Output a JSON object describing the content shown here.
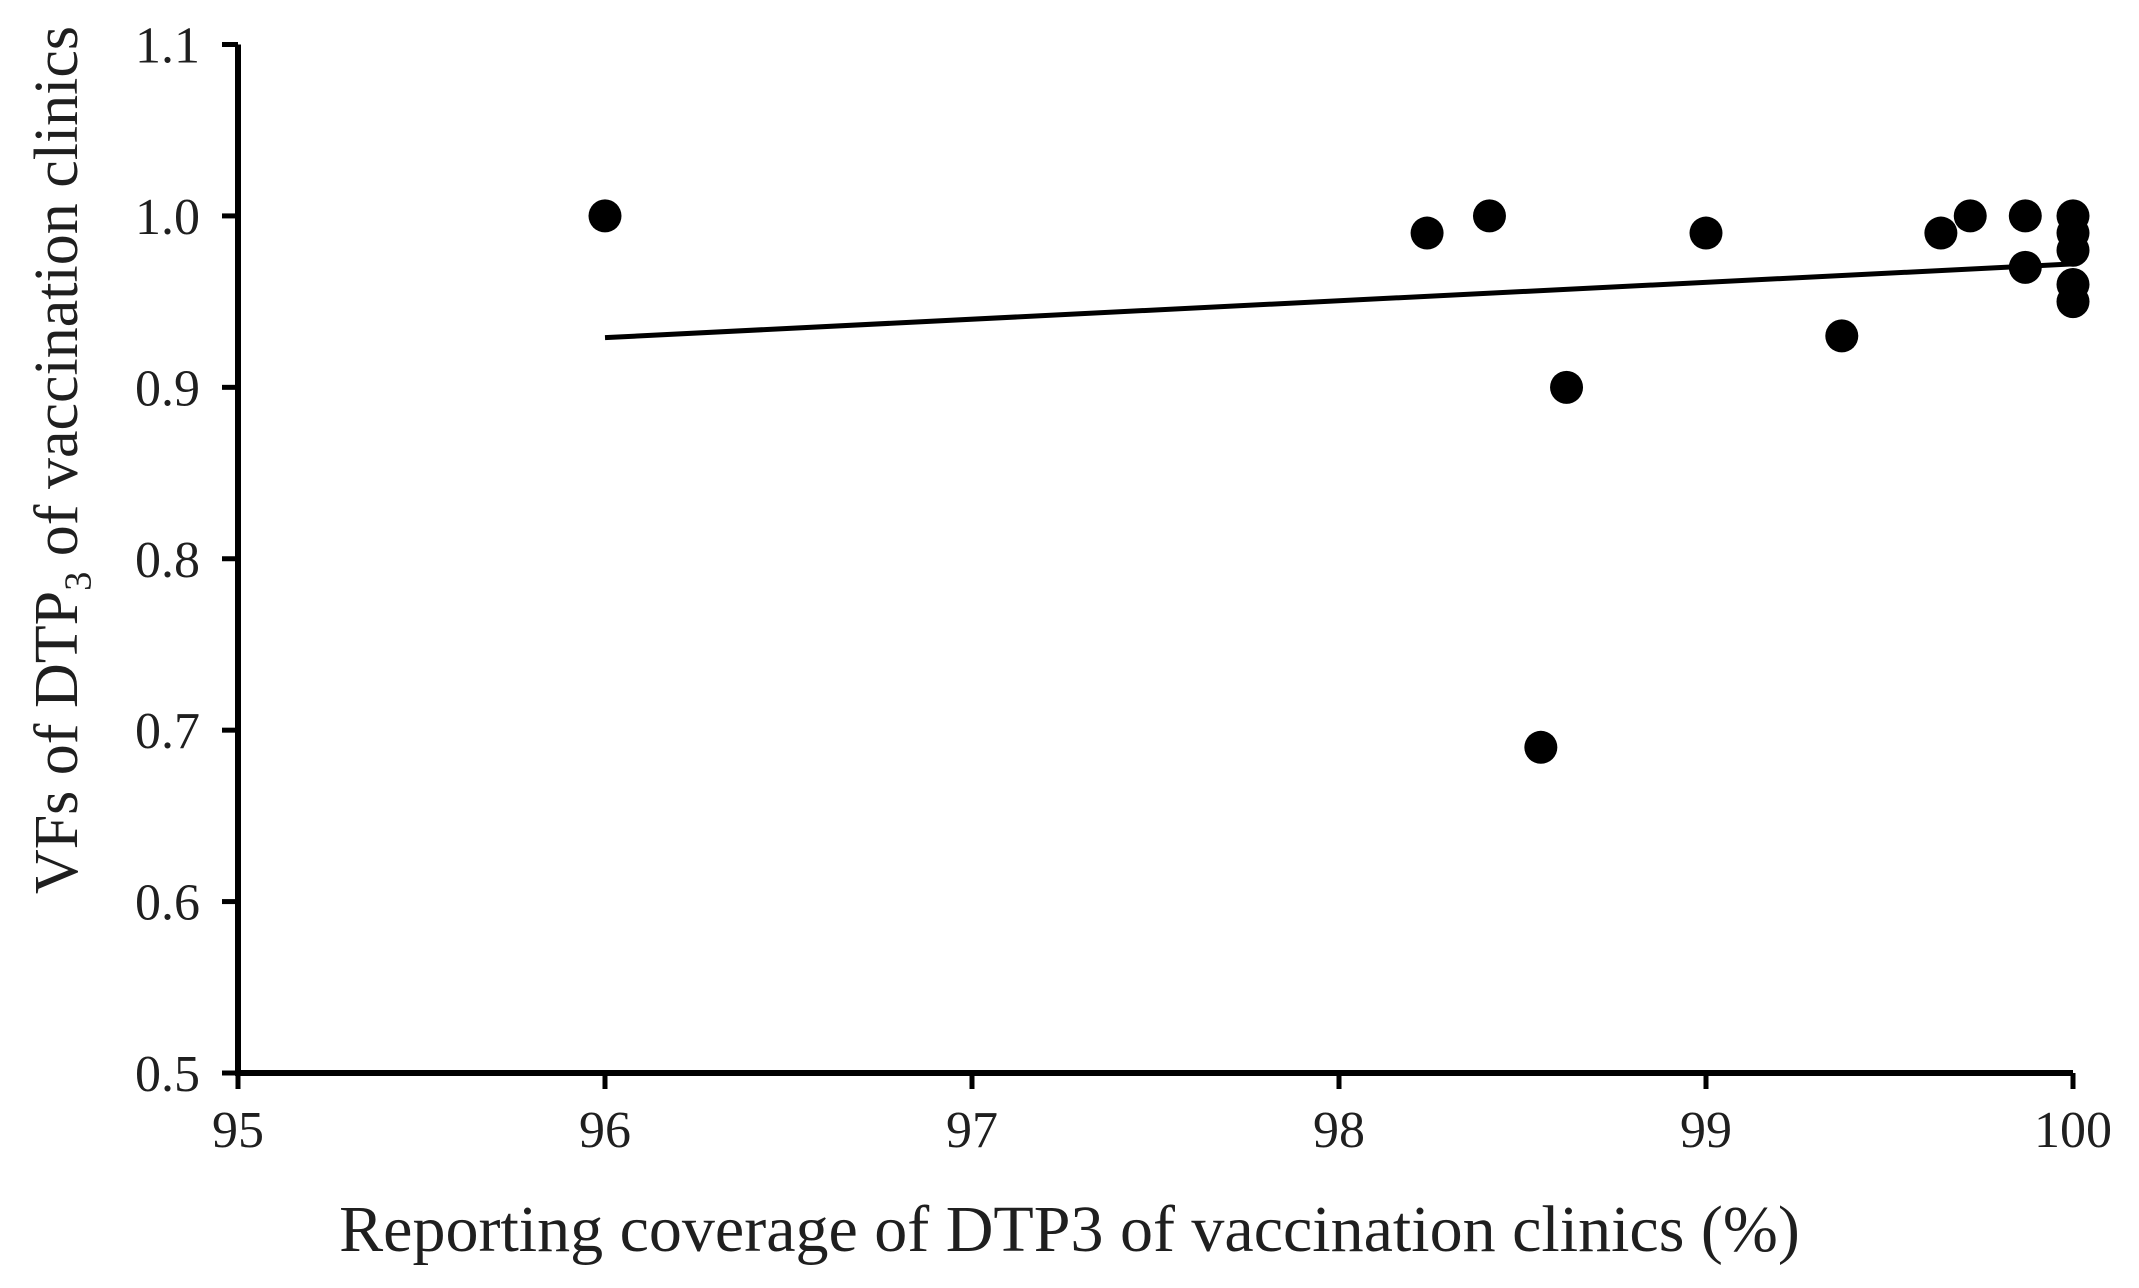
{
  "chart_data": {
    "type": "scatter",
    "title": "",
    "xlabel": "Reporting coverage of DTP3 of vaccination clinics (%)",
    "ylabel": "VFs of DTP3 of vaccination clinics",
    "ylabel_pre": "VFs of DTP",
    "ylabel_sub": "3",
    "ylabel_post": " of vaccination clinics",
    "xlim": [
      95,
      100
    ],
    "ylim": [
      0.5,
      1.1
    ],
    "x_ticks": [
      "95",
      "96",
      "97",
      "98",
      "99",
      "100"
    ],
    "y_ticks": [
      "0.5",
      "0.6",
      "0.7",
      "0.8",
      "0.9",
      "1.0",
      "1.1"
    ],
    "grid": false,
    "legend": null,
    "point_color": "#000000",
    "axis_color": "#000000",
    "trend_color": "#000000",
    "points": [
      {
        "x": 96.0,
        "y": 1.0
      },
      {
        "x": 98.24,
        "y": 0.99
      },
      {
        "x": 98.41,
        "y": 1.0
      },
      {
        "x": 98.55,
        "y": 0.69
      },
      {
        "x": 98.62,
        "y": 0.9
      },
      {
        "x": 99.0,
        "y": 0.99
      },
      {
        "x": 99.37,
        "y": 0.93
      },
      {
        "x": 99.64,
        "y": 0.99
      },
      {
        "x": 99.72,
        "y": 1.0
      },
      {
        "x": 99.87,
        "y": 1.0
      },
      {
        "x": 99.87,
        "y": 0.97
      },
      {
        "x": 100.0,
        "y": 1.0
      },
      {
        "x": 100.0,
        "y": 0.99
      },
      {
        "x": 100.0,
        "y": 0.98
      },
      {
        "x": 100.0,
        "y": 0.96
      },
      {
        "x": 100.0,
        "y": 0.95
      }
    ],
    "trendline": {
      "x_start": 96.0,
      "y_start": 0.929,
      "x_end": 100.0,
      "y_end": 0.972
    }
  }
}
